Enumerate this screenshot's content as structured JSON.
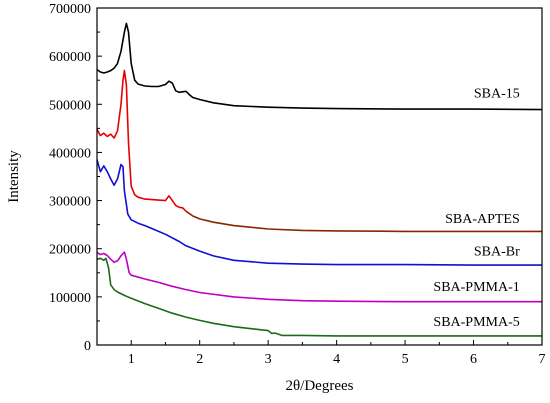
{
  "chart_data": {
    "type": "line",
    "title": "",
    "xlabel": "2θ/Degrees",
    "ylabel": "Intensity",
    "xlim": [
      0.5,
      7
    ],
    "ylim": [
      0,
      700000
    ],
    "x_ticks": [
      1,
      2,
      3,
      4,
      5,
      6,
      7
    ],
    "y_ticks": [
      0,
      100000,
      200000,
      300000,
      400000,
      500000,
      600000,
      700000
    ],
    "x_tick_labels": [
      "1",
      "2",
      "3",
      "4",
      "5",
      "6",
      "7"
    ],
    "y_tick_labels": [
      "0",
      "100000",
      "200000",
      "300000",
      "400000",
      "500000",
      "600000",
      "700000"
    ],
    "grid": false,
    "legend": "inline-right",
    "series": [
      {
        "name": "SBA-15",
        "color": "#000000",
        "label_x": 6.5,
        "label_y": 522000,
        "points": [
          [
            0.5,
            572000
          ],
          [
            0.55,
            567000
          ],
          [
            0.6,
            565000
          ],
          [
            0.65,
            567000
          ],
          [
            0.7,
            570000
          ],
          [
            0.75,
            575000
          ],
          [
            0.8,
            585000
          ],
          [
            0.85,
            610000
          ],
          [
            0.9,
            650000
          ],
          [
            0.93,
            668000
          ],
          [
            0.96,
            650000
          ],
          [
            1.0,
            585000
          ],
          [
            1.05,
            550000
          ],
          [
            1.1,
            542000
          ],
          [
            1.2,
            538000
          ],
          [
            1.3,
            537000
          ],
          [
            1.4,
            537000
          ],
          [
            1.5,
            541000
          ],
          [
            1.55,
            548000
          ],
          [
            1.6,
            544000
          ],
          [
            1.65,
            528000
          ],
          [
            1.7,
            525000
          ],
          [
            1.75,
            526000
          ],
          [
            1.8,
            527000
          ],
          [
            1.85,
            520000
          ],
          [
            1.9,
            514000
          ],
          [
            2.0,
            510000
          ],
          [
            2.2,
            503000
          ],
          [
            2.5,
            497000
          ],
          [
            3.0,
            494000
          ],
          [
            3.5,
            492000
          ],
          [
            4.0,
            491000
          ],
          [
            5.0,
            490000
          ],
          [
            6.0,
            490000
          ],
          [
            7.0,
            489000
          ]
        ]
      },
      {
        "name": "SBA-APTES",
        "color": "#e80000",
        "label_x": 6.5,
        "label_y": 262000,
        "points": [
          [
            0.5,
            448000
          ],
          [
            0.55,
            435000
          ],
          [
            0.6,
            440000
          ],
          [
            0.65,
            433000
          ],
          [
            0.7,
            438000
          ],
          [
            0.75,
            430000
          ],
          [
            0.8,
            445000
          ],
          [
            0.85,
            500000
          ],
          [
            0.88,
            550000
          ],
          [
            0.9,
            570000
          ],
          [
            0.93,
            540000
          ],
          [
            0.96,
            420000
          ],
          [
            1.0,
            330000
          ],
          [
            1.05,
            312000
          ],
          [
            1.1,
            307000
          ],
          [
            1.2,
            303000
          ],
          [
            1.3,
            302000
          ],
          [
            1.4,
            301000
          ],
          [
            1.5,
            300000
          ],
          [
            1.55,
            310000
          ],
          [
            1.6,
            300000
          ],
          [
            1.65,
            290000
          ],
          [
            1.7,
            286000
          ],
          [
            1.75,
            285000
          ],
          [
            1.8,
            278000
          ]
        ]
      },
      {
        "name": "SBA-APTES (tail)",
        "color": "#8b2500",
        "points": [
          [
            1.8,
            278000
          ],
          [
            1.9,
            268000
          ],
          [
            2.0,
            262000
          ],
          [
            2.2,
            255000
          ],
          [
            2.5,
            248000
          ],
          [
            3.0,
            241000
          ],
          [
            3.5,
            238000
          ],
          [
            4.0,
            237000
          ],
          [
            5.0,
            236000
          ],
          [
            6.0,
            236000
          ],
          [
            7.0,
            236000
          ]
        ]
      },
      {
        "name": "SBA-Br",
        "color": "#1010d0",
        "label_x": 6.5,
        "label_y": 194000,
        "points": [
          [
            0.5,
            385000
          ],
          [
            0.55,
            360000
          ],
          [
            0.6,
            372000
          ],
          [
            0.65,
            360000
          ],
          [
            0.7,
            345000
          ],
          [
            0.75,
            332000
          ],
          [
            0.8,
            345000
          ],
          [
            0.85,
            375000
          ],
          [
            0.88,
            370000
          ],
          [
            0.9,
            320000
          ],
          [
            0.95,
            272000
          ],
          [
            1.0,
            260000
          ],
          [
            1.1,
            253000
          ],
          [
            1.2,
            248000
          ],
          [
            1.3,
            242000
          ],
          [
            1.5,
            230000
          ],
          [
            1.7,
            215000
          ],
          [
            1.8,
            206000
          ],
          [
            2.0,
            195000
          ],
          [
            2.2,
            185000
          ],
          [
            2.5,
            176000
          ],
          [
            3.0,
            170000
          ],
          [
            3.5,
            168000
          ],
          [
            4.0,
            167000
          ],
          [
            5.0,
            167000
          ],
          [
            6.0,
            166000
          ],
          [
            7.0,
            166000
          ]
        ]
      },
      {
        "name": "SBA-PMMA-1",
        "color": "#c000c0",
        "label_x": 6.5,
        "label_y": 120000,
        "points": [
          [
            0.5,
            192000
          ],
          [
            0.55,
            188000
          ],
          [
            0.6,
            190000
          ],
          [
            0.65,
            186000
          ],
          [
            0.7,
            178000
          ],
          [
            0.75,
            172000
          ],
          [
            0.8,
            175000
          ],
          [
            0.85,
            185000
          ],
          [
            0.9,
            193000
          ],
          [
            0.93,
            178000
          ],
          [
            0.97,
            150000
          ],
          [
            1.0,
            145000
          ],
          [
            1.2,
            137000
          ],
          [
            1.4,
            130000
          ],
          [
            1.6,
            122000
          ],
          [
            1.8,
            115000
          ],
          [
            2.0,
            109000
          ],
          [
            2.5,
            100000
          ],
          [
            3.0,
            95000
          ],
          [
            3.5,
            92000
          ],
          [
            4.0,
            91000
          ],
          [
            5.0,
            90000
          ],
          [
            6.0,
            90000
          ],
          [
            7.0,
            90000
          ]
        ]
      },
      {
        "name": "SBA-PMMA-5",
        "color": "#1a6b1a",
        "label_x": 6.5,
        "label_y": 48000,
        "points": [
          [
            0.5,
            178000
          ],
          [
            0.55,
            180000
          ],
          [
            0.6,
            176000
          ],
          [
            0.63,
            180000
          ],
          [
            0.67,
            160000
          ],
          [
            0.7,
            125000
          ],
          [
            0.75,
            115000
          ],
          [
            0.8,
            110000
          ],
          [
            0.9,
            103000
          ],
          [
            1.0,
            97000
          ],
          [
            1.2,
            86000
          ],
          [
            1.4,
            76000
          ],
          [
            1.6,
            66000
          ],
          [
            1.8,
            58000
          ],
          [
            2.0,
            51000
          ],
          [
            2.2,
            45000
          ],
          [
            2.5,
            38000
          ],
          [
            2.8,
            33000
          ],
          [
            3.0,
            30000
          ],
          [
            3.05,
            24000
          ],
          [
            3.1,
            25000
          ],
          [
            3.2,
            20000
          ],
          [
            3.5,
            20000
          ],
          [
            4.0,
            19000
          ],
          [
            5.0,
            19000
          ],
          [
            6.0,
            19000
          ],
          [
            7.0,
            19000
          ]
        ]
      }
    ]
  }
}
